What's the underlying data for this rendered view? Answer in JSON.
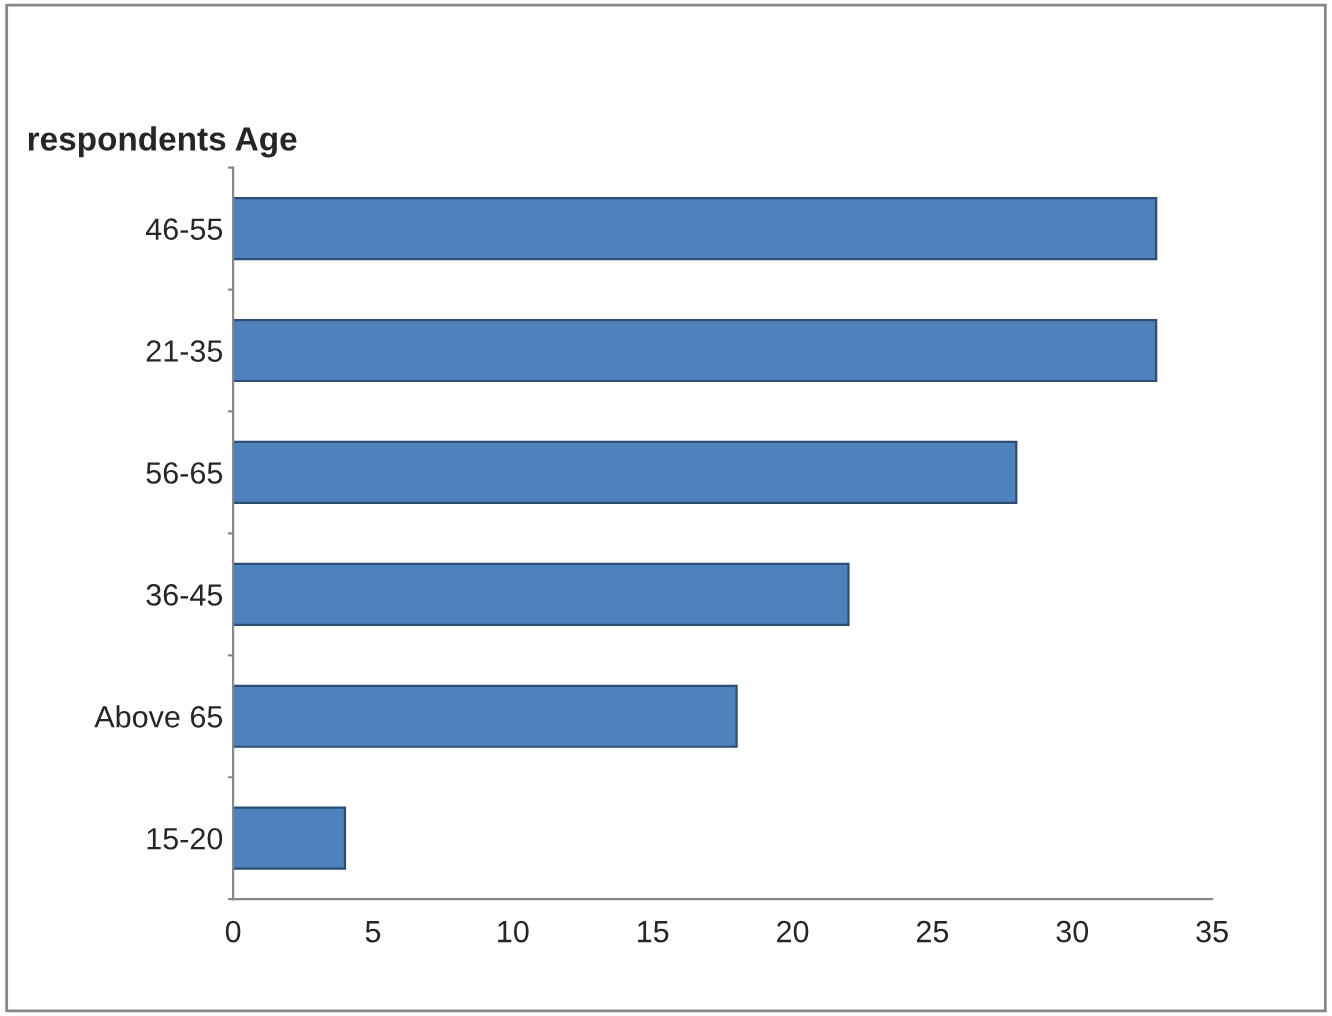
{
  "chart_data": {
    "type": "bar",
    "orientation": "horizontal",
    "title": "respondents Age",
    "categories": [
      "46-55",
      "21-35",
      "56-65",
      "36-45",
      "Above 65",
      "15-20"
    ],
    "values": [
      33,
      33,
      28,
      22,
      18,
      4
    ],
    "color": "#4f81bd",
    "xlim": [
      0,
      35
    ],
    "xticks": [
      0,
      5,
      10,
      15,
      20,
      25,
      30,
      35
    ],
    "grid": false,
    "legend": false
  }
}
